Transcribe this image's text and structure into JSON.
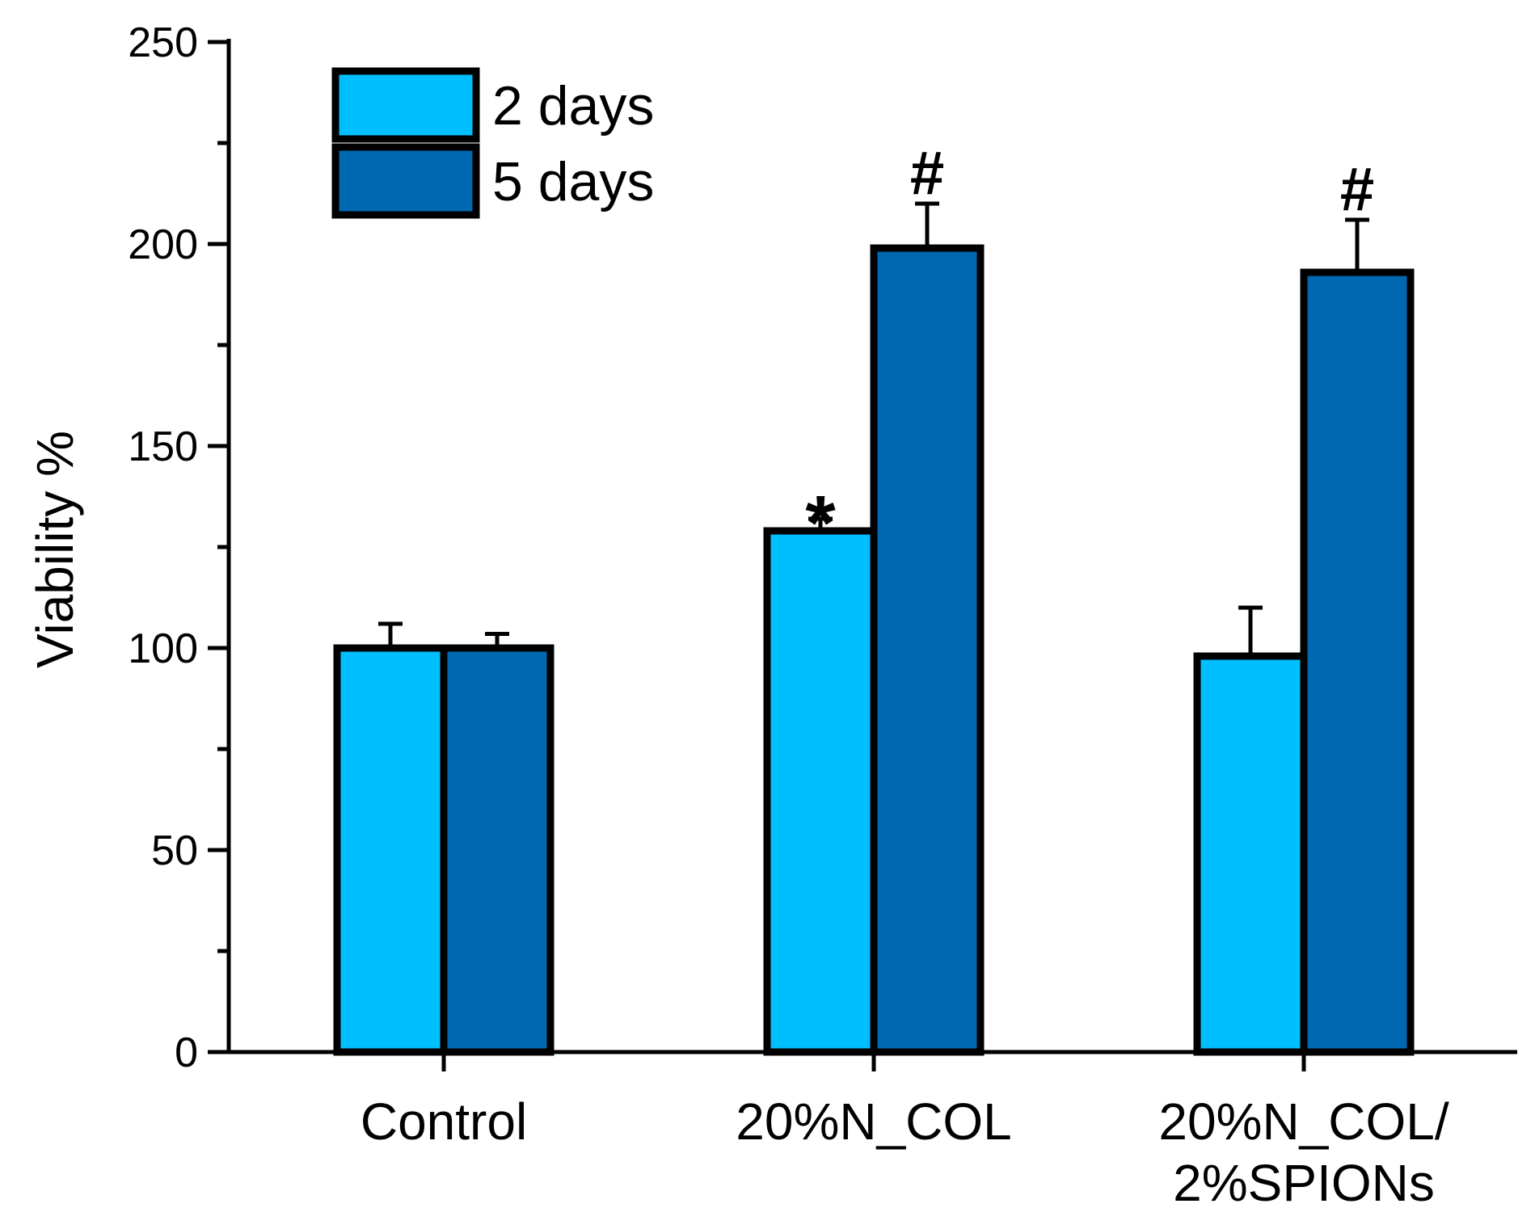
{
  "chart_data": {
    "type": "bar",
    "title": "",
    "xlabel": "",
    "ylabel": "Viability %",
    "ylim": [
      0,
      250
    ],
    "yticks": [
      0,
      50,
      100,
      150,
      200,
      250
    ],
    "y_minor_step": 25,
    "grid": false,
    "legend_position": "top-left",
    "categories": [
      [
        "Control"
      ],
      [
        "20%N_COL"
      ],
      [
        "20%N_COL/",
        "2%SPIONs"
      ]
    ],
    "series": [
      {
        "name": "2 days",
        "color": "#00BFFF",
        "values": [
          100,
          129,
          98
        ],
        "errors": [
          6,
          3,
          12
        ],
        "annotations": [
          "",
          "*",
          ""
        ]
      },
      {
        "name": "5 days",
        "color": "#0068B0",
        "values": [
          100,
          199,
          193
        ],
        "errors": [
          3.5,
          11,
          13
        ],
        "annotations": [
          "",
          "#",
          "#"
        ]
      }
    ]
  }
}
